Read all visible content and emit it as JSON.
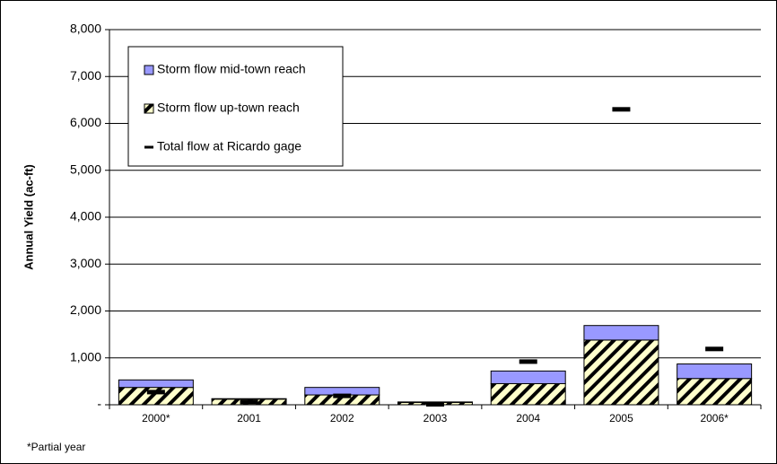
{
  "chart_data": {
    "type": "bar",
    "stacked": true,
    "y_label": "Annual Yield (ac-ft)",
    "categories": [
      "2000*",
      "2001",
      "2002",
      "2003",
      "2004",
      "2005",
      "2006*"
    ],
    "series": [
      {
        "name": "Storm flow up-town reach",
        "color": "#ffffcc",
        "pattern": "hatch",
        "values": [
          370,
          120,
          210,
          50,
          450,
          1380,
          560
        ]
      },
      {
        "name": "Storm flow mid-town reach",
        "color": "#9999ff",
        "values": [
          160,
          10,
          160,
          10,
          270,
          310,
          310
        ]
      },
      {
        "name": "Total flow at Ricardo gage",
        "color": "#000000",
        "marker": "dash",
        "values": [
          270,
          60,
          190,
          10,
          920,
          6300,
          1190
        ]
      }
    ],
    "legend_order": [
      1,
      0,
      2
    ],
    "legend": "upper left",
    "ylim": [
      0,
      8000
    ],
    "yticks": [
      {
        "value": 0,
        "label": "-"
      },
      {
        "value": 1000,
        "label": "1,000"
      },
      {
        "value": 2000,
        "label": "2,000"
      },
      {
        "value": 3000,
        "label": "3,000"
      },
      {
        "value": 4000,
        "label": "4,000"
      },
      {
        "value": 5000,
        "label": "5,000"
      },
      {
        "value": 6000,
        "label": "6,000"
      },
      {
        "value": 7000,
        "label": "7,000"
      },
      {
        "value": 8000,
        "label": "8,000"
      }
    ],
    "grid": true,
    "footnote": "*Partial year"
  }
}
